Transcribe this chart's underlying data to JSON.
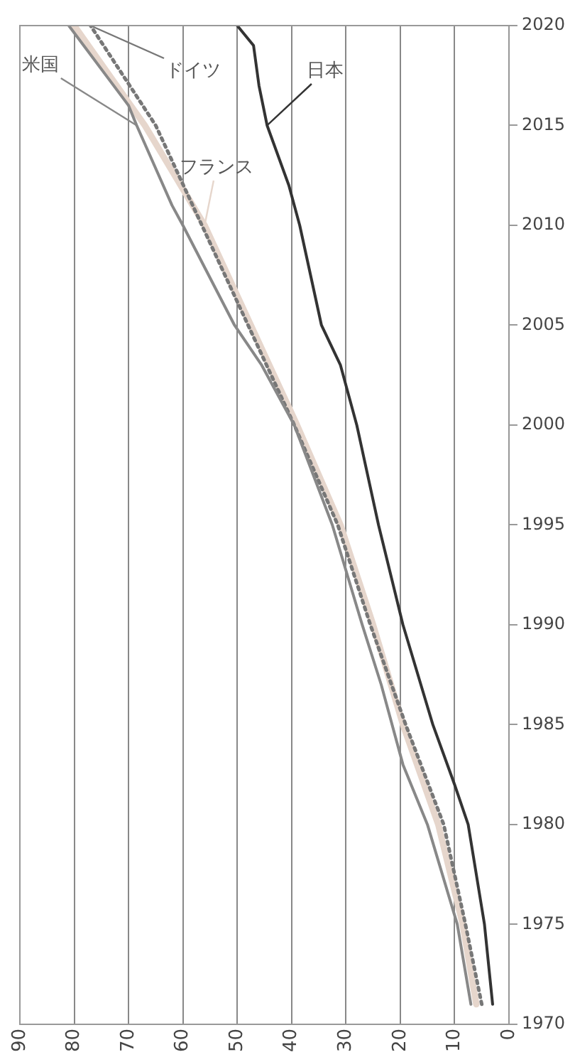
{
  "chart_data": {
    "type": "line",
    "xlim": [
      90,
      0
    ],
    "xticks": [
      0,
      10,
      20,
      30,
      40,
      50,
      60,
      70,
      80,
      90
    ],
    "ylim": [
      1970,
      2020
    ],
    "yticks": [
      1970,
      1975,
      1980,
      1985,
      1990,
      1995,
      2000,
      2005,
      2010,
      2015,
      2020
    ],
    "grid": "x",
    "legend": false,
    "marker": "none",
    "series": [
      {
        "name": "日本",
        "color": "#333333",
        "line_style": "solid",
        "x": [
          3,
          4.5,
          7.5,
          10,
          14,
          19.5,
          24,
          28,
          31,
          34.5,
          38.5,
          40.5,
          44.5,
          46,
          47,
          50
        ],
        "values": [
          1971,
          1975,
          1980,
          1982,
          1985,
          1990,
          1995,
          2000,
          2003,
          2005,
          2010,
          2012,
          2015,
          2017,
          2019,
          2020
        ]
      },
      {
        "name": "米国",
        "color": "#888888",
        "line_style": "solid",
        "x": [
          7,
          9.5,
          15,
          19.5,
          21.5,
          23.5,
          27,
          32.5,
          39.5,
          45.5,
          50.5,
          60,
          62,
          68.5,
          70,
          81
        ],
        "values": [
          1971,
          1975,
          1980,
          1983,
          1985,
          1987,
          1990,
          1995,
          2000,
          2003,
          2005,
          2010,
          2011,
          2015,
          2016,
          2020
        ]
      },
      {
        "name": "ドイツ",
        "color": "#777777",
        "line_style": "dotted",
        "x": [
          5,
          8,
          12,
          19,
          25.5,
          31.5,
          39.5,
          48,
          56.5,
          65,
          77
        ],
        "values": [
          1971,
          1975,
          1980,
          1985,
          1990,
          1995,
          2000,
          2005,
          2010,
          2015,
          2020
        ]
      },
      {
        "name": "フランス",
        "color": "#e6d6cc",
        "line_style": "solid",
        "x": [
          6,
          8.5,
          13,
          19.5,
          25,
          31,
          39,
          47.5,
          56,
          67,
          80
        ],
        "values": [
          1971,
          1975,
          1980,
          1985,
          1990,
          1995,
          2000,
          2005,
          2010,
          2015,
          2020
        ]
      }
    ]
  }
}
